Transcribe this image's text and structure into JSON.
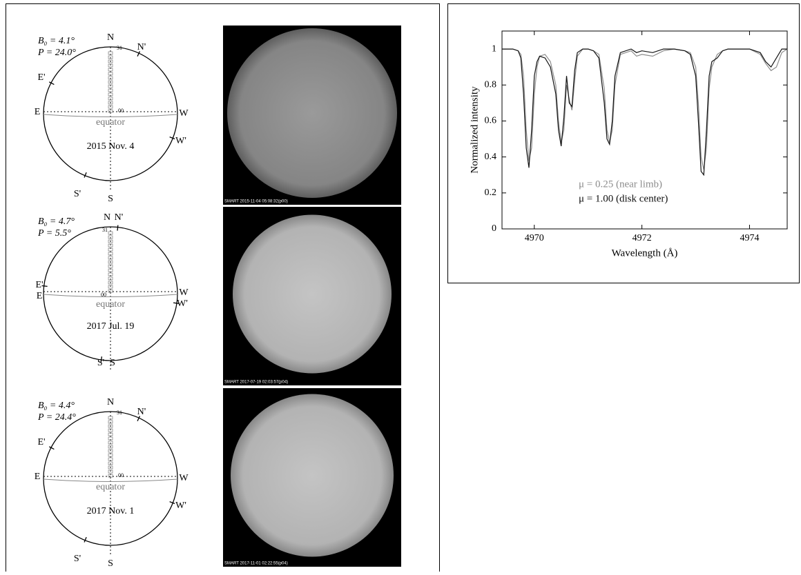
{
  "diagrams": [
    {
      "labels": {
        "b0": "B₀ = 4.1°",
        "p": "P = 24.0°",
        "n": "N",
        "n_prime": "N'",
        "e_prime": "E'",
        "e": "E",
        "w": "W",
        "w_prime": "W'",
        "s_prime": "S'",
        "s": "S",
        "equator": "equator",
        "date": "2015 Nov. 4",
        "lat_top": "31",
        "lat_center": "00"
      },
      "image_caption": "SMART 2015-11-04 05:08:32(p00)"
    },
    {
      "labels": {
        "b0": "B₀ = 4.7°",
        "p": "P = 5.5°",
        "n": "N",
        "n_prime": "N'",
        "e_prime": "E'",
        "e": "E",
        "w": "W",
        "w_prime": "W'",
        "s_prime": "S'",
        "s": "S",
        "equator": "equator",
        "date": "2017 Jul. 19",
        "lat_top": "31",
        "lat_center": "00"
      },
      "image_caption": "SMART 2017-07-19 02:03:57(p04)"
    },
    {
      "labels": {
        "b0": "B₀ = 4.4°",
        "p": "P = 24.4°",
        "n": "N",
        "n_prime": "N'",
        "e_prime": "E'",
        "e": "E",
        "w": "W",
        "w_prime": "W'",
        "s_prime": "S'",
        "s": "S",
        "equator": "equator",
        "date": "2017 Nov. 1",
        "lat_top": "31",
        "lat_center": "00"
      },
      "image_caption": "SMART 2017-11-01 02:22:55(p04)"
    }
  ],
  "chart_data": {
    "type": "line",
    "x_label": "Wavelength (Å)",
    "y_label": "Normalized intensity",
    "x": [
      4969.4,
      4969.6,
      4969.7,
      4969.75,
      4969.8,
      4969.85,
      4969.9,
      4969.95,
      4970.0,
      4970.05,
      4970.1,
      4970.2,
      4970.3,
      4970.4,
      4970.45,
      4970.5,
      4970.55,
      4970.6,
      4970.65,
      4970.7,
      4970.75,
      4970.8,
      4970.9,
      4971.0,
      4971.1,
      4971.2,
      4971.3,
      4971.35,
      4971.4,
      4971.45,
      4971.5,
      4971.6,
      4971.8,
      4971.9,
      4972.0,
      4972.2,
      4972.4,
      4972.6,
      4972.8,
      4972.9,
      4973.0,
      4973.05,
      4973.1,
      4973.15,
      4973.2,
      4973.25,
      4973.3,
      4973.4,
      4973.5,
      4973.6,
      4973.8,
      4974.0,
      4974.2,
      4974.3,
      4974.4,
      4974.5,
      4974.6,
      4974.7
    ],
    "series": [
      {
        "name": "μ = 0.25 (near limb)",
        "color": "#8c8c8c",
        "values": [
          1.0,
          1.0,
          0.99,
          0.97,
          0.85,
          0.55,
          0.38,
          0.45,
          0.75,
          0.9,
          0.96,
          0.97,
          0.93,
          0.8,
          0.6,
          0.48,
          0.55,
          0.8,
          0.72,
          0.66,
          0.82,
          0.96,
          1.0,
          1.0,
          0.99,
          0.97,
          0.78,
          0.55,
          0.48,
          0.55,
          0.8,
          0.97,
          0.99,
          0.96,
          0.97,
          0.96,
          0.99,
          1.0,
          0.99,
          0.98,
          0.9,
          0.7,
          0.4,
          0.33,
          0.45,
          0.78,
          0.9,
          0.97,
          0.99,
          1.0,
          1.0,
          1.0,
          0.97,
          0.92,
          0.88,
          0.9,
          0.98,
          1.0
        ]
      },
      {
        "name": "μ = 1.00 (disk center)",
        "color": "#111111",
        "values": [
          1.0,
          1.0,
          0.99,
          0.95,
          0.75,
          0.45,
          0.34,
          0.55,
          0.85,
          0.93,
          0.96,
          0.95,
          0.9,
          0.75,
          0.55,
          0.46,
          0.62,
          0.85,
          0.7,
          0.68,
          0.88,
          0.98,
          1.0,
          1.0,
          0.99,
          0.95,
          0.7,
          0.5,
          0.47,
          0.6,
          0.85,
          0.98,
          1.0,
          0.98,
          0.99,
          0.98,
          1.0,
          1.0,
          0.99,
          0.97,
          0.85,
          0.6,
          0.32,
          0.3,
          0.55,
          0.85,
          0.93,
          0.95,
          0.99,
          1.0,
          1.0,
          1.0,
          0.98,
          0.93,
          0.9,
          0.95,
          1.0,
          1.0
        ]
      }
    ],
    "xlim": [
      4969.4,
      4974.7
    ],
    "xticks": [
      4970,
      4972,
      4974
    ],
    "ylim": [
      0,
      1.1
    ],
    "yticks": [
      0,
      0.2,
      0.4,
      0.6,
      0.8,
      1
    ]
  }
}
